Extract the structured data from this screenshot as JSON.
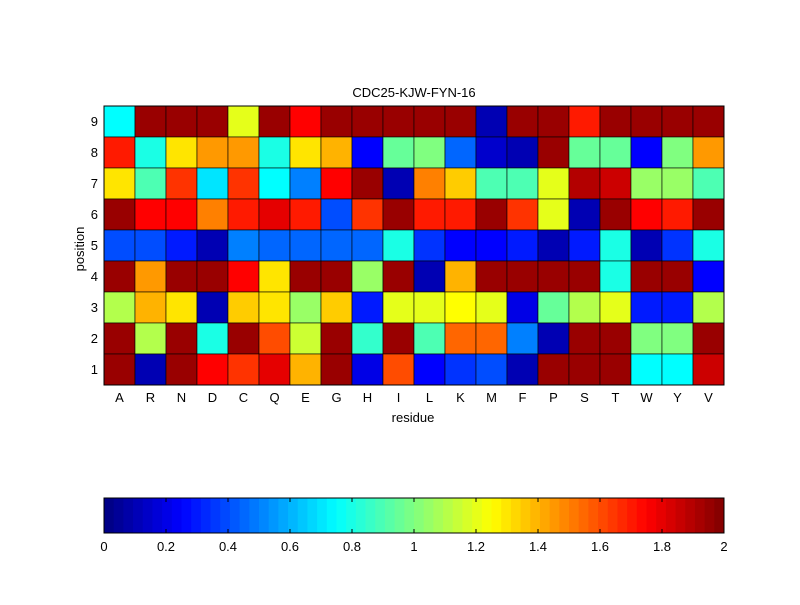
{
  "chart_data": {
    "type": "heatmap",
    "title": "CDC25-KJW-FYN-16",
    "xlabel": "residue",
    "ylabel": "position",
    "x_categories": [
      "A",
      "R",
      "N",
      "D",
      "C",
      "Q",
      "E",
      "G",
      "H",
      "I",
      "L",
      "K",
      "M",
      "F",
      "P",
      "S",
      "T",
      "W",
      "Y",
      "V"
    ],
    "y_categories": [
      "9",
      "8",
      "7",
      "6",
      "5",
      "4",
      "3",
      "2",
      "1"
    ],
    "colormap": "jet",
    "clim": [
      0,
      2
    ],
    "colorbar": {
      "orientation": "horizontal",
      "placement": "bottom",
      "ticks": [
        0,
        0.2,
        0.4,
        0.6,
        0.8,
        1,
        1.2,
        1.4,
        1.6,
        1.8,
        2
      ],
      "tick_labels": [
        "0",
        "0.2",
        "0.4",
        "0.6",
        "0.8",
        "1",
        "1.2",
        "1.4",
        "1.6",
        "1.8",
        "2"
      ]
    },
    "values": [
      [
        0.75,
        1.95,
        1.95,
        1.95,
        1.2,
        1.95,
        1.75,
        1.95,
        1.95,
        1.95,
        1.95,
        1.95,
        0.1,
        1.95,
        1.95,
        1.7,
        1.95,
        1.95,
        1.95,
        1.95
      ],
      [
        1.7,
        0.8,
        1.3,
        1.45,
        1.45,
        0.8,
        1.3,
        1.4,
        0.25,
        0.95,
        1.0,
        0.45,
        0.15,
        0.1,
        1.95,
        0.95,
        0.95,
        0.25,
        1.0,
        1.45
      ],
      [
        1.3,
        0.9,
        1.65,
        0.7,
        1.65,
        0.75,
        0.5,
        1.75,
        1.95,
        0.1,
        1.5,
        1.35,
        0.9,
        0.9,
        1.2,
        1.9,
        1.85,
        1.05,
        1.05,
        0.9
      ],
      [
        1.95,
        1.75,
        1.75,
        1.5,
        1.7,
        1.8,
        1.7,
        0.4,
        1.65,
        1.95,
        1.7,
        1.7,
        1.95,
        1.65,
        1.2,
        0.1,
        1.95,
        1.75,
        1.7,
        1.95
      ],
      [
        0.4,
        0.4,
        0.3,
        0.1,
        0.5,
        0.45,
        0.45,
        0.45,
        0.45,
        0.8,
        0.35,
        0.25,
        0.25,
        0.3,
        0.1,
        0.3,
        0.8,
        0.1,
        0.35,
        0.8
      ],
      [
        1.95,
        1.45,
        1.95,
        1.95,
        1.75,
        1.3,
        1.95,
        1.95,
        1.05,
        1.95,
        0.1,
        1.4,
        1.95,
        1.95,
        1.95,
        1.95,
        0.8,
        1.95,
        1.95,
        0.25
      ],
      [
        1.1,
        1.4,
        1.3,
        0.1,
        1.35,
        1.3,
        1.05,
        1.35,
        0.3,
        1.2,
        1.2,
        1.25,
        1.2,
        0.2,
        0.95,
        1.1,
        1.2,
        0.3,
        0.3,
        1.1
      ],
      [
        1.95,
        1.1,
        1.95,
        0.8,
        1.95,
        1.6,
        1.15,
        1.95,
        0.85,
        1.95,
        0.9,
        1.55,
        1.55,
        0.5,
        0.1,
        1.95,
        1.95,
        1.0,
        1.0,
        1.95
      ],
      [
        1.95,
        0.1,
        1.95,
        1.75,
        1.65,
        1.8,
        1.4,
        1.95,
        0.2,
        1.6,
        0.25,
        0.35,
        0.4,
        0.1,
        1.95,
        1.95,
        1.95,
        0.75,
        0.75,
        1.85
      ]
    ]
  }
}
